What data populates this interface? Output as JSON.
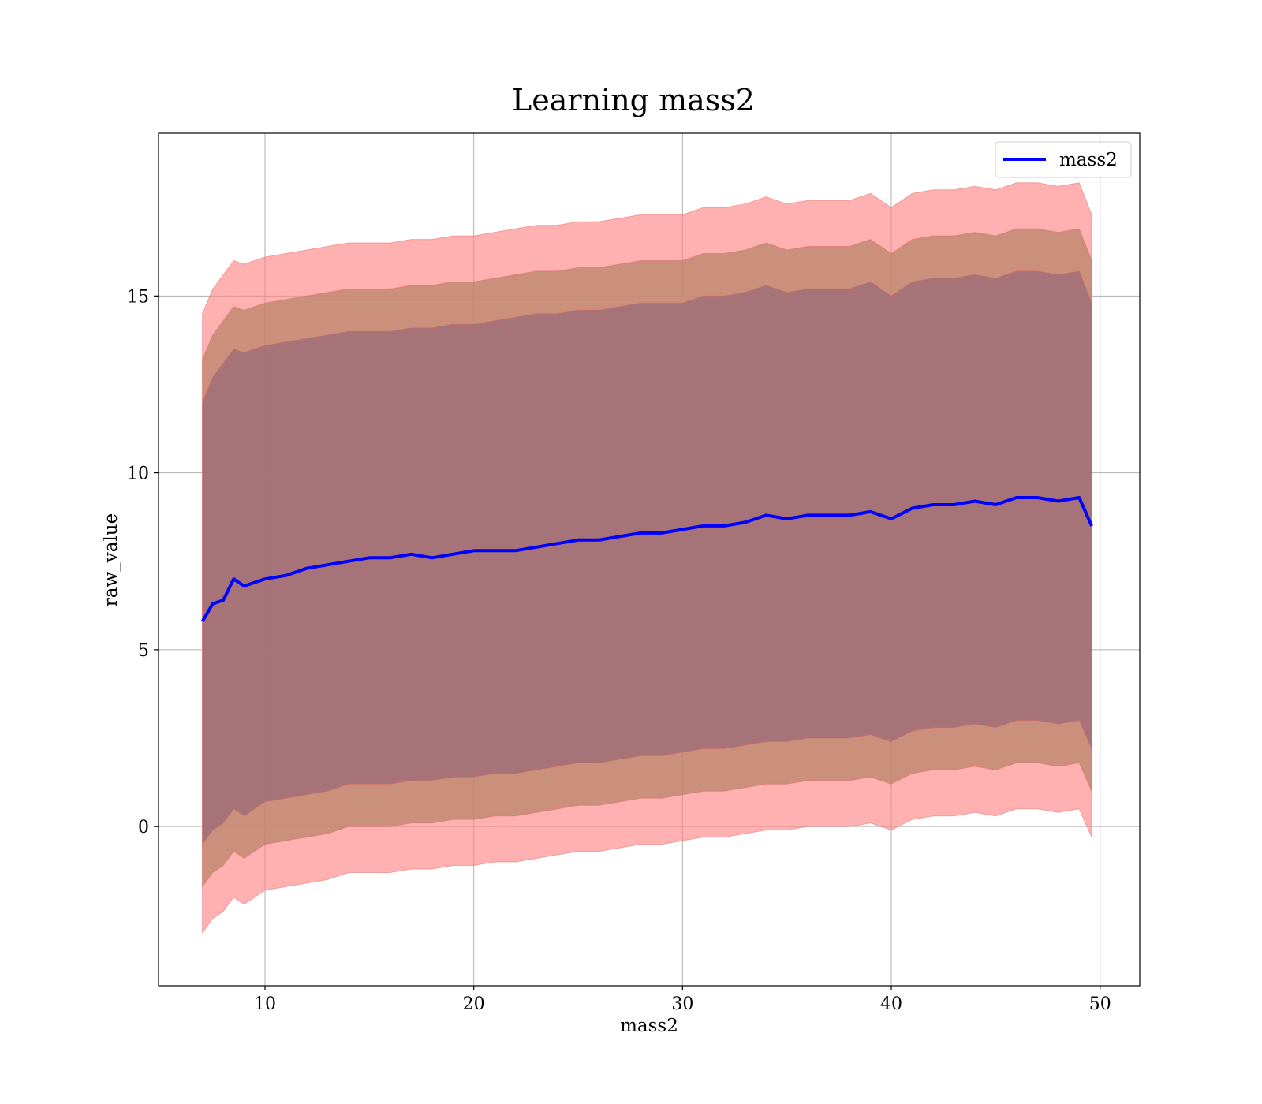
{
  "chart_data": {
    "type": "line",
    "title": "Learning mass2",
    "xlabel": "mass2",
    "ylabel": "raw_value",
    "xlim": [
      4.9,
      51.9
    ],
    "ylim": [
      -4.5,
      19.6
    ],
    "xticks": [
      10,
      20,
      30,
      40,
      50
    ],
    "yticks": [
      0,
      5,
      10,
      15
    ],
    "grid": true,
    "legend_position": "top-right",
    "colors": {
      "mean_line": "#0000ff",
      "band_outer": "#ff8080",
      "band_middle": "#b8866b",
      "band_inner": "#a06f78",
      "band_edge": "#e06060"
    },
    "series": [
      {
        "name": "mass2",
        "x": [
          7.0,
          7.5,
          8.0,
          8.5,
          9.0,
          10.0,
          11.0,
          12.0,
          13.0,
          14.0,
          15.0,
          16.0,
          17.0,
          18.0,
          19.0,
          20.0,
          21.0,
          22.0,
          23.0,
          24.0,
          25.0,
          26.0,
          27.0,
          28.0,
          29.0,
          30.0,
          31.0,
          32.0,
          33.0,
          34.0,
          35.0,
          36.0,
          37.0,
          38.0,
          39.0,
          40.0,
          41.0,
          42.0,
          43.0,
          44.0,
          45.0,
          46.0,
          47.0,
          48.0,
          49.0,
          49.6
        ],
        "mean": [
          5.8,
          6.3,
          6.4,
          7.0,
          6.8,
          7.0,
          7.1,
          7.3,
          7.4,
          7.5,
          7.6,
          7.6,
          7.7,
          7.6,
          7.7,
          7.8,
          7.8,
          7.8,
          7.9,
          8.0,
          8.1,
          8.1,
          8.2,
          8.3,
          8.3,
          8.4,
          8.5,
          8.5,
          8.6,
          8.8,
          8.7,
          8.8,
          8.8,
          8.8,
          8.9,
          8.7,
          9.0,
          9.1,
          9.1,
          9.2,
          9.1,
          9.3,
          9.3,
          9.2,
          9.3,
          8.5
        ],
        "bands": [
          {
            "upper": [
              14.5,
              15.2,
              15.6,
              16.0,
              15.9,
              16.1,
              16.2,
              16.3,
              16.4,
              16.5,
              16.5,
              16.5,
              16.6,
              16.6,
              16.7,
              16.7,
              16.8,
              16.9,
              17.0,
              17.0,
              17.1,
              17.1,
              17.2,
              17.3,
              17.3,
              17.3,
              17.5,
              17.5,
              17.6,
              17.8,
              17.6,
              17.7,
              17.7,
              17.7,
              17.9,
              17.5,
              17.9,
              18.0,
              18.0,
              18.1,
              18.0,
              18.2,
              18.2,
              18.1,
              18.2,
              17.3
            ],
            "lower": [
              -3.0,
              -2.6,
              -2.4,
              -2.0,
              -2.2,
              -1.8,
              -1.7,
              -1.6,
              -1.5,
              -1.3,
              -1.3,
              -1.3,
              -1.2,
              -1.2,
              -1.1,
              -1.1,
              -1.0,
              -1.0,
              -0.9,
              -0.8,
              -0.7,
              -0.7,
              -0.6,
              -0.5,
              -0.5,
              -0.4,
              -0.3,
              -0.3,
              -0.2,
              -0.1,
              -0.1,
              0.0,
              0.0,
              0.0,
              0.1,
              -0.1,
              0.2,
              0.3,
              0.3,
              0.4,
              0.3,
              0.5,
              0.5,
              0.4,
              0.5,
              -0.3
            ]
          },
          {
            "upper": [
              13.2,
              13.9,
              14.3,
              14.7,
              14.6,
              14.8,
              14.9,
              15.0,
              15.1,
              15.2,
              15.2,
              15.2,
              15.3,
              15.3,
              15.4,
              15.4,
              15.5,
              15.6,
              15.7,
              15.7,
              15.8,
              15.8,
              15.9,
              16.0,
              16.0,
              16.0,
              16.2,
              16.2,
              16.3,
              16.5,
              16.3,
              16.4,
              16.4,
              16.4,
              16.6,
              16.2,
              16.6,
              16.7,
              16.7,
              16.8,
              16.7,
              16.9,
              16.9,
              16.8,
              16.9,
              16.0
            ],
            "lower": [
              -1.7,
              -1.3,
              -1.1,
              -0.7,
              -0.9,
              -0.5,
              -0.4,
              -0.3,
              -0.2,
              0.0,
              0.0,
              0.0,
              0.1,
              0.1,
              0.2,
              0.2,
              0.3,
              0.3,
              0.4,
              0.5,
              0.6,
              0.6,
              0.7,
              0.8,
              0.8,
              0.9,
              1.0,
              1.0,
              1.1,
              1.2,
              1.2,
              1.3,
              1.3,
              1.3,
              1.4,
              1.2,
              1.5,
              1.6,
              1.6,
              1.7,
              1.6,
              1.8,
              1.8,
              1.7,
              1.8,
              1.0
            ]
          },
          {
            "upper": [
              12.0,
              12.7,
              13.1,
              13.5,
              13.4,
              13.6,
              13.7,
              13.8,
              13.9,
              14.0,
              14.0,
              14.0,
              14.1,
              14.1,
              14.2,
              14.2,
              14.3,
              14.4,
              14.5,
              14.5,
              14.6,
              14.6,
              14.7,
              14.8,
              14.8,
              14.8,
              15.0,
              15.0,
              15.1,
              15.3,
              15.1,
              15.2,
              15.2,
              15.2,
              15.4,
              15.0,
              15.4,
              15.5,
              15.5,
              15.6,
              15.5,
              15.7,
              15.7,
              15.6,
              15.7,
              14.8
            ],
            "lower": [
              -0.5,
              -0.1,
              0.1,
              0.5,
              0.3,
              0.7,
              0.8,
              0.9,
              1.0,
              1.2,
              1.2,
              1.2,
              1.3,
              1.3,
              1.4,
              1.4,
              1.5,
              1.5,
              1.6,
              1.7,
              1.8,
              1.8,
              1.9,
              2.0,
              2.0,
              2.1,
              2.2,
              2.2,
              2.3,
              2.4,
              2.4,
              2.5,
              2.5,
              2.5,
              2.6,
              2.4,
              2.7,
              2.8,
              2.8,
              2.9,
              2.8,
              3.0,
              3.0,
              2.9,
              3.0,
              2.2
            ]
          }
        ]
      }
    ]
  }
}
